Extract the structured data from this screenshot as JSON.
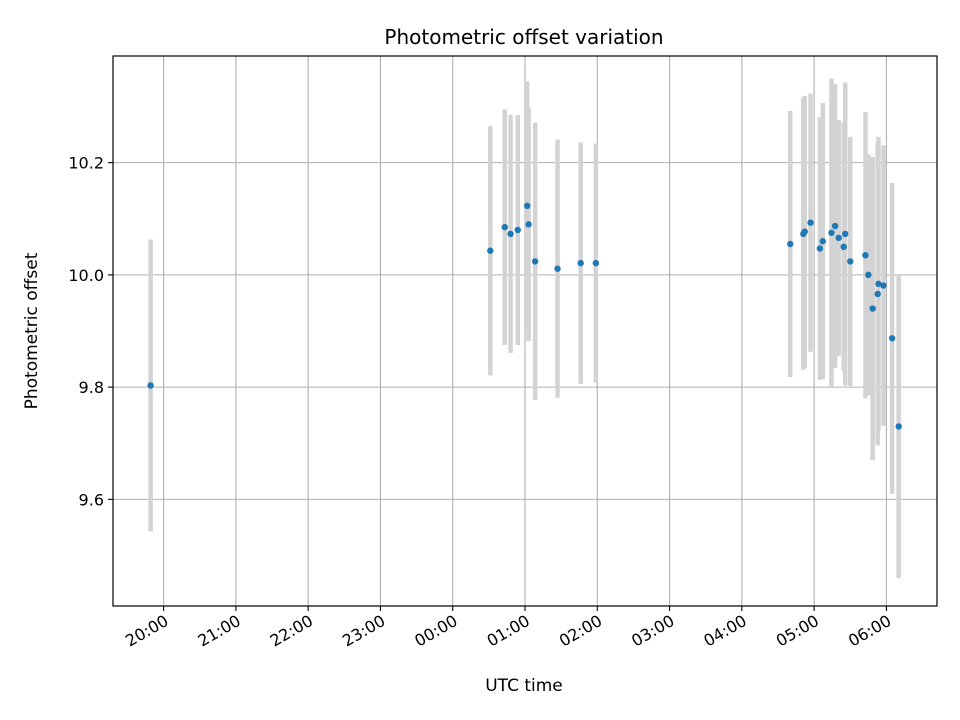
{
  "chart_data": {
    "type": "scatter",
    "title": "Photometric offset variation",
    "xlabel": "UTC time",
    "ylabel": "Photometric offset",
    "grid": true,
    "x_unit": "UTC time (hours; values after 24:00 fall on the next day)",
    "xlim": [
      19.3,
      30.7
    ],
    "ylim": [
      9.41,
      10.39
    ],
    "x_ticks": [
      20,
      21,
      22,
      23,
      24,
      25,
      26,
      27,
      28,
      29,
      30
    ],
    "x_tick_labels": [
      "20:00",
      "21:00",
      "22:00",
      "23:00",
      "00:00",
      "01:00",
      "02:00",
      "03:00",
      "04:00",
      "05:00",
      "06:00"
    ],
    "y_ticks": [
      9.6,
      9.8,
      10.0,
      10.2
    ],
    "y_tick_labels": [
      "9.6",
      "9.8",
      "10.0",
      "10.2"
    ],
    "point_color": "#1f77b4",
    "errorbar_color": "#d3d3d3",
    "series": [
      {
        "points": [
          {
            "x": 19.82,
            "y": 9.803,
            "err": 0.26
          },
          {
            "x": 24.52,
            "y": 10.043,
            "err": 0.222
          },
          {
            "x": 24.72,
            "y": 10.085,
            "err": 0.21
          },
          {
            "x": 24.8,
            "y": 10.073,
            "err": 0.212
          },
          {
            "x": 24.9,
            "y": 10.08,
            "err": 0.205
          },
          {
            "x": 25.03,
            "y": 10.123,
            "err": 0.222
          },
          {
            "x": 25.05,
            "y": 10.09,
            "err": 0.208
          },
          {
            "x": 25.14,
            "y": 10.024,
            "err": 0.247
          },
          {
            "x": 25.45,
            "y": 10.011,
            "err": 0.23
          },
          {
            "x": 25.77,
            "y": 10.021,
            "err": 0.215
          },
          {
            "x": 25.98,
            "y": 10.021,
            "err": 0.213
          },
          {
            "x": 28.67,
            "y": 10.055,
            "err": 0.237
          },
          {
            "x": 28.85,
            "y": 10.073,
            "err": 0.242
          },
          {
            "x": 28.87,
            "y": 10.077,
            "err": 0.242
          },
          {
            "x": 28.95,
            "y": 10.093,
            "err": 0.23
          },
          {
            "x": 29.08,
            "y": 10.047,
            "err": 0.234
          },
          {
            "x": 29.12,
            "y": 10.06,
            "err": 0.246
          },
          {
            "x": 29.24,
            "y": 10.075,
            "err": 0.275
          },
          {
            "x": 29.29,
            "y": 10.087,
            "err": 0.253
          },
          {
            "x": 29.34,
            "y": 10.066,
            "err": 0.21
          },
          {
            "x": 29.41,
            "y": 10.05,
            "err": 0.222
          },
          {
            "x": 29.43,
            "y": 10.073,
            "err": 0.27
          },
          {
            "x": 29.5,
            "y": 10.024,
            "err": 0.222
          },
          {
            "x": 29.71,
            "y": 10.035,
            "err": 0.255
          },
          {
            "x": 29.75,
            "y": 10.0,
            "err": 0.215
          },
          {
            "x": 29.81,
            "y": 9.94,
            "err": 0.27
          },
          {
            "x": 29.88,
            "y": 9.966,
            "err": 0.27
          },
          {
            "x": 29.89,
            "y": 9.984,
            "err": 0.262
          },
          {
            "x": 29.96,
            "y": 9.981,
            "err": 0.25
          },
          {
            "x": 30.08,
            "y": 9.887,
            "err": 0.277
          },
          {
            "x": 30.17,
            "y": 9.73,
            "err": 0.27
          }
        ]
      }
    ]
  }
}
